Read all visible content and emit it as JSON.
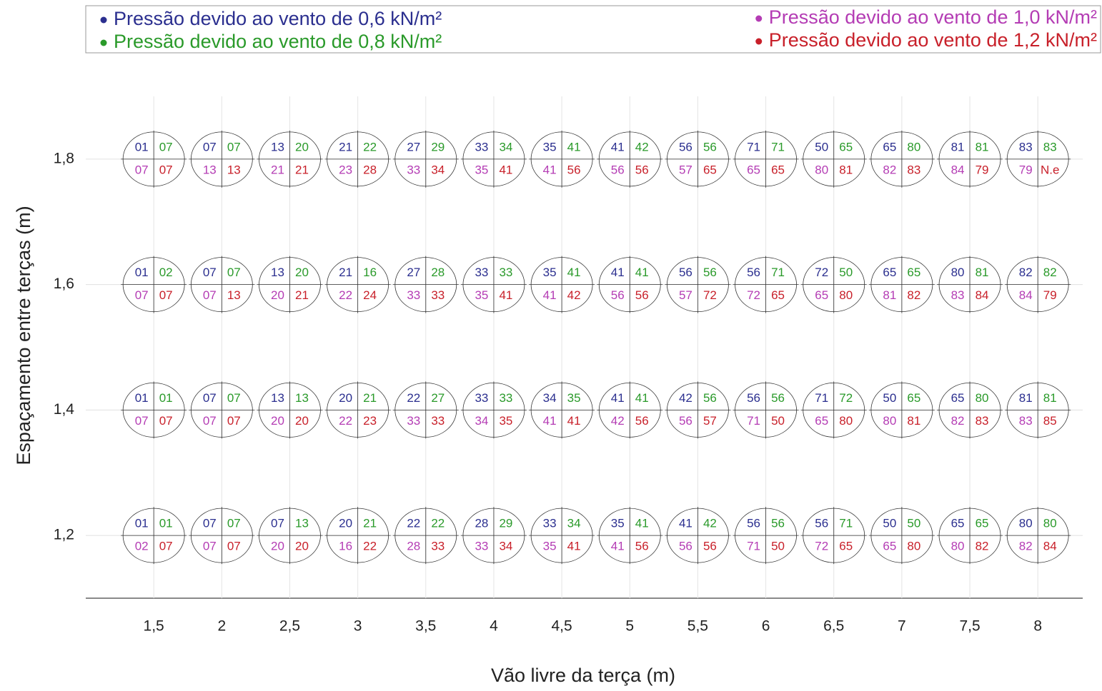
{
  "chart_data": {
    "type": "cell-grid",
    "x_label": "Vão livre da terça (m)",
    "y_label": "Espaçamento entre terças (m)",
    "xlim": [
      1.0,
      8.33
    ],
    "ylim": [
      1.1,
      1.9
    ],
    "xticks": [
      {
        "value": 1.5,
        "label": "1,5"
      },
      2,
      {
        "value": 2.5,
        "label": "2,5"
      },
      3,
      {
        "value": 3.5,
        "label": "3,5"
      },
      4,
      {
        "value": 4.5,
        "label": "4,5"
      },
      5,
      {
        "value": 5.5,
        "label": "5,5"
      },
      6,
      {
        "value": 6.5,
        "label": "6,5"
      },
      7,
      {
        "value": 7.5,
        "label": "7,5"
      },
      8
    ],
    "yticks": [
      {
        "value": 1.2,
        "label": "1,2"
      },
      {
        "value": 1.4,
        "label": "1,4"
      },
      {
        "value": 1.6,
        "label": "1,6"
      },
      {
        "value": 1.8,
        "label": "1,8"
      }
    ],
    "grid": true,
    "series": [
      {
        "name": "Pressão devido ao vento de 0,6 kN/m²",
        "color": "#2b2f8f",
        "labels": [
          [
            "01",
            "07",
            "07",
            "20",
            "22",
            "28",
            "33",
            "35",
            "41",
            "56",
            "56",
            "50",
            "65",
            "80"
          ],
          [
            "01",
            "07",
            "13",
            "20",
            "22",
            "33",
            "34",
            "41",
            "42",
            "56",
            "71",
            "50",
            "65",
            "81"
          ],
          [
            "01",
            "07",
            "13",
            "21",
            "27",
            "33",
            "35",
            "41",
            "56",
            "56",
            "72",
            "65",
            "80",
            "82"
          ],
          [
            "01",
            "07",
            "13",
            "21",
            "27",
            "33",
            "35",
            "41",
            "56",
            "71",
            "50",
            "65",
            "81",
            "83"
          ]
        ]
      },
      {
        "name": "Pressão devido ao vento de 0,8 kN/m²",
        "color": "#2a9a2a",
        "labels": [
          [
            "01",
            "07",
            "13",
            "21",
            "22",
            "29",
            "34",
            "41",
            "42",
            "56",
            "71",
            "50",
            "65",
            "80"
          ],
          [
            "01",
            "07",
            "13",
            "21",
            "27",
            "33",
            "35",
            "41",
            "56",
            "56",
            "72",
            "65",
            "80",
            "81"
          ],
          [
            "02",
            "07",
            "20",
            "16",
            "28",
            "33",
            "41",
            "41",
            "56",
            "71",
            "50",
            "65",
            "81",
            "82"
          ],
          [
            "07",
            "07",
            "20",
            "22",
            "29",
            "34",
            "41",
            "42",
            "56",
            "71",
            "65",
            "80",
            "81",
            "83"
          ]
        ]
      },
      {
        "name": "Pressão devido ao vento de 1,0 kN/m²",
        "color": "#b43cb4",
        "labels": [
          [
            "02",
            "07",
            "20",
            "16",
            "28",
            "33",
            "35",
            "41",
            "56",
            "71",
            "72",
            "65",
            "80",
            "82"
          ],
          [
            "07",
            "07",
            "20",
            "22",
            "33",
            "34",
            "41",
            "42",
            "56",
            "71",
            "65",
            "80",
            "82",
            "83"
          ],
          [
            "07",
            "07",
            "20",
            "22",
            "33",
            "35",
            "41",
            "56",
            "57",
            "72",
            "65",
            "81",
            "83",
            "84"
          ],
          [
            "07",
            "13",
            "21",
            "23",
            "33",
            "35",
            "41",
            "56",
            "57",
            "65",
            "80",
            "82",
            "84",
            "79"
          ]
        ]
      },
      {
        "name": "Pressão devido ao vento de 1,2 kN/m²",
        "color": "#c8202a",
        "labels": [
          [
            "07",
            "07",
            "20",
            "22",
            "33",
            "34",
            "41",
            "56",
            "56",
            "50",
            "65",
            "80",
            "82",
            "84"
          ],
          [
            "07",
            "07",
            "20",
            "23",
            "33",
            "35",
            "41",
            "56",
            "57",
            "50",
            "80",
            "81",
            "83",
            "85"
          ],
          [
            "07",
            "13",
            "21",
            "24",
            "33",
            "41",
            "42",
            "56",
            "72",
            "65",
            "80",
            "82",
            "84",
            "79"
          ],
          [
            "07",
            "13",
            "21",
            "28",
            "34",
            "41",
            "56",
            "56",
            "65",
            "65",
            "81",
            "83",
            "79",
            "N.e"
          ]
        ]
      }
    ]
  }
}
